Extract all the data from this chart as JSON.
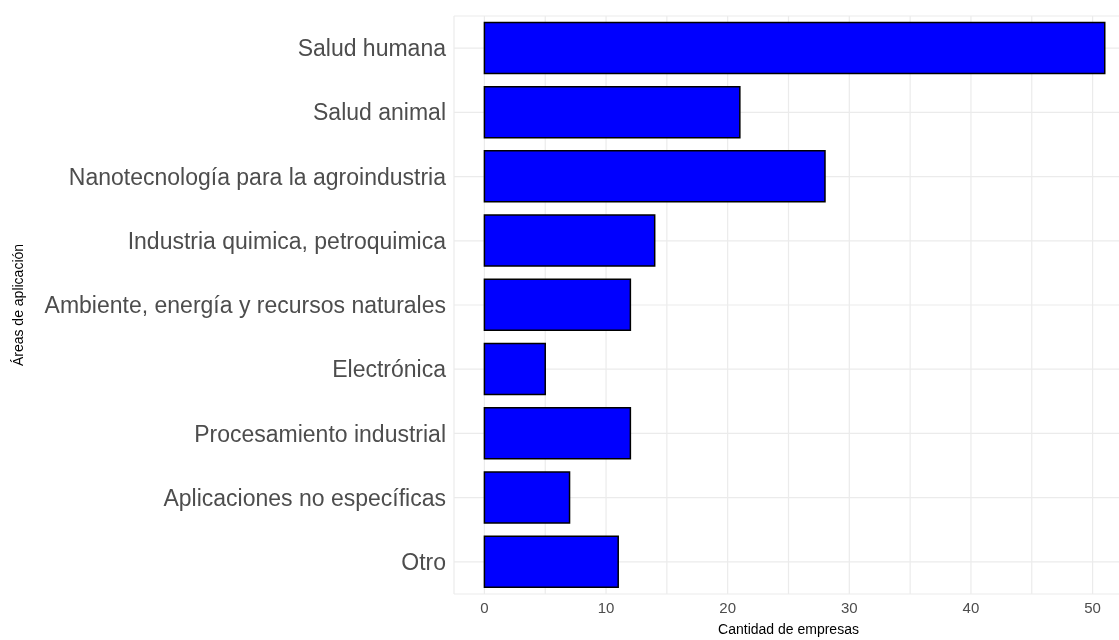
{
  "chart_data": {
    "type": "bar",
    "orientation": "horizontal",
    "xlabel": "Cantidad de empresas",
    "ylabel": "Áreas de aplicación",
    "categories": [
      "Salud humana",
      "Salud animal",
      "Nanotecnología para la agroindustria",
      "Industria quimica, petroquimica",
      "Ambiente, energía y recursos naturales",
      "Electrónica",
      "Procesamiento industrial",
      "Aplicaciones no específicas",
      "Otro"
    ],
    "values": [
      51,
      21,
      28,
      14,
      12,
      5,
      12,
      7,
      11
    ],
    "color": "#0000ff",
    "xlim": [
      -2.5,
      52.5
    ],
    "xticks": [
      0,
      {
        "value": 5,
        "label": null
      },
      10,
      {
        "value": 15,
        "label": null
      },
      20,
      {
        "value": 25,
        "label": null
      },
      30,
      {
        "value": 35,
        "label": null
      },
      40,
      {
        "value": 45,
        "label": null
      },
      50
    ],
    "grid": true
  }
}
